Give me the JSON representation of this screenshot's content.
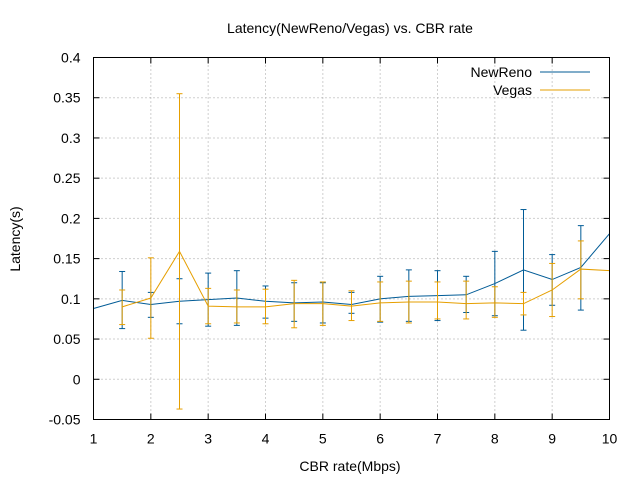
{
  "chart_data": {
    "type": "line",
    "title": "Latency(NewReno/Vegas) vs. CBR rate",
    "xlabel": "CBR rate(Mbps)",
    "ylabel": "Latency(s)",
    "xlim": [
      1,
      10
    ],
    "ylim": [
      -0.05,
      0.4
    ],
    "xticks": [
      1,
      2,
      3,
      4,
      5,
      6,
      7,
      8,
      9,
      10
    ],
    "yticks": [
      -0.05,
      0,
      0.05,
      0.1,
      0.15,
      0.2,
      0.25,
      0.3,
      0.35,
      0.4
    ],
    "xtick_labels": [
      "1",
      "2",
      "3",
      "4",
      "5",
      "6",
      "7",
      "8",
      "9",
      "10"
    ],
    "ytick_labels": [
      "-0.05",
      "0",
      "0.05",
      "0.1",
      "0.15",
      "0.2",
      "0.25",
      "0.3",
      "0.35",
      "0.4"
    ],
    "grid": true,
    "legend_position": "top-right",
    "x": [
      1,
      1.5,
      2,
      2.5,
      3,
      3.5,
      4,
      4.5,
      5,
      5.5,
      6,
      6.5,
      7,
      7.5,
      8,
      8.5,
      9,
      9.5,
      10
    ],
    "series": [
      {
        "name": "NewReno",
        "color": "#005b96",
        "values": [
          0.088,
          0.098,
          0.093,
          0.097,
          0.099,
          0.101,
          0.097,
          0.095,
          0.096,
          0.093,
          0.1,
          0.103,
          0.104,
          0.105,
          0.119,
          0.136,
          0.124,
          0.139,
          0.181
        ],
        "err_low": [
          null,
          0.063,
          0.077,
          0.069,
          0.066,
          0.067,
          0.076,
          0.072,
          0.07,
          0.082,
          0.071,
          0.072,
          0.073,
          0.083,
          0.079,
          0.061,
          0.092,
          0.086,
          null
        ],
        "err_high": [
          null,
          0.134,
          0.108,
          0.125,
          0.132,
          0.135,
          0.116,
          0.12,
          0.12,
          0.108,
          0.128,
          0.136,
          0.135,
          0.128,
          0.159,
          0.211,
          0.155,
          0.191,
          0.181
        ]
      },
      {
        "name": "Vegas",
        "color": "#e69f00",
        "values": [
          null,
          0.09,
          0.101,
          0.159,
          0.091,
          0.09,
          0.09,
          0.094,
          0.094,
          0.091,
          0.095,
          0.096,
          0.096,
          0.094,
          0.095,
          0.094,
          0.111,
          0.137,
          0.135
        ],
        "err_low": [
          null,
          0.068,
          0.051,
          -0.037,
          0.069,
          0.07,
          0.069,
          0.064,
          0.067,
          0.073,
          0.072,
          0.07,
          0.075,
          0.075,
          0.077,
          0.08,
          0.078,
          0.1,
          null
        ],
        "err_high": [
          null,
          0.111,
          0.151,
          0.355,
          0.113,
          0.111,
          0.112,
          0.123,
          0.121,
          0.11,
          0.121,
          0.122,
          0.121,
          0.122,
          0.115,
          0.108,
          0.144,
          0.172,
          null
        ]
      }
    ]
  }
}
